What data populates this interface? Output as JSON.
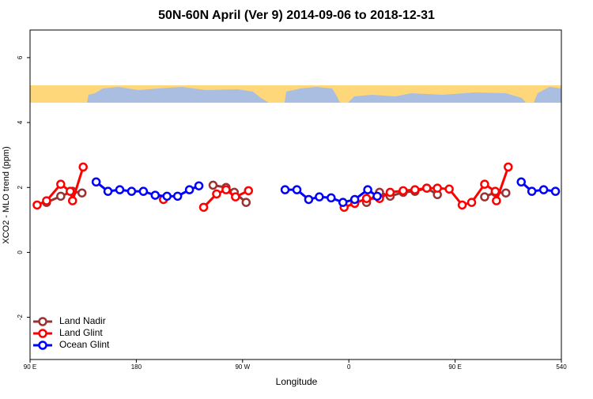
{
  "chart_data": {
    "type": "line",
    "title": "50N-60N April (Ver 9)   2014-09-06 to 2018-12-31",
    "xlabel": "Longitude",
    "ylabel": "XCO2 - MLO trend (ppm)",
    "xlim": [
      90,
      540
    ],
    "ylim": [
      -3.3,
      6.85
    ],
    "xticks": [
      {
        "value": 90,
        "label": "90 E"
      },
      180,
      {
        "value": 270,
        "label": "90 W"
      },
      {
        "value": 360,
        "label": "0"
      },
      {
        "value": 450,
        "label": "90 E"
      },
      540
    ],
    "yticks": [
      -2,
      0,
      2,
      4,
      6
    ],
    "legend": "bottom-left",
    "series": [
      {
        "name": "Land Nadir",
        "color": "#993333",
        "x": [
          104,
          116,
          126,
          134,
          null,
          245,
          256,
          263,
          273,
          null,
          375,
          386,
          395,
          406,
          416,
          426,
          435,
          null,
          475,
          484,
          493
        ],
        "values": [
          1.54,
          1.73,
          1.88,
          1.83,
          null,
          2.07,
          2.0,
          1.85,
          1.54,
          null,
          1.54,
          1.85,
          1.73,
          1.85,
          1.88,
          1.98,
          1.78,
          null,
          1.71,
          1.85,
          1.83
        ]
      },
      {
        "name": "Land Glint",
        "color": "#ff0000",
        "x": [
          96,
          104,
          116,
          124,
          126,
          135,
          null,
          203,
          null,
          237,
          248,
          256,
          264,
          275,
          null,
          356,
          365,
          375,
          386,
          395,
          406,
          416,
          426,
          435,
          445,
          456,
          464,
          475,
          484,
          485,
          495
        ],
        "values": [
          1.46,
          1.59,
          2.1,
          1.88,
          1.59,
          2.63,
          null,
          1.63,
          null,
          1.39,
          1.8,
          1.93,
          1.71,
          1.9,
          null,
          1.39,
          1.51,
          1.66,
          1.66,
          1.85,
          1.9,
          1.93,
          1.98,
          1.98,
          1.95,
          1.46,
          1.54,
          2.1,
          1.88,
          1.59,
          2.63
        ]
      },
      {
        "name": "Ocean Glint",
        "color": "#0000ff",
        "x": [
          146,
          156,
          166,
          176,
          186,
          196,
          206,
          215,
          225,
          233,
          null,
          306,
          316,
          326,
          335,
          345,
          355,
          365,
          376,
          384,
          null,
          506,
          515,
          525,
          535
        ],
        "values": [
          2.17,
          1.88,
          1.93,
          1.88,
          1.88,
          1.76,
          1.73,
          1.73,
          1.93,
          2.05,
          null,
          1.93,
          1.93,
          1.63,
          1.71,
          1.68,
          1.54,
          1.63,
          1.93,
          1.73,
          null,
          2.17,
          1.88,
          1.93,
          1.88
        ]
      }
    ]
  }
}
